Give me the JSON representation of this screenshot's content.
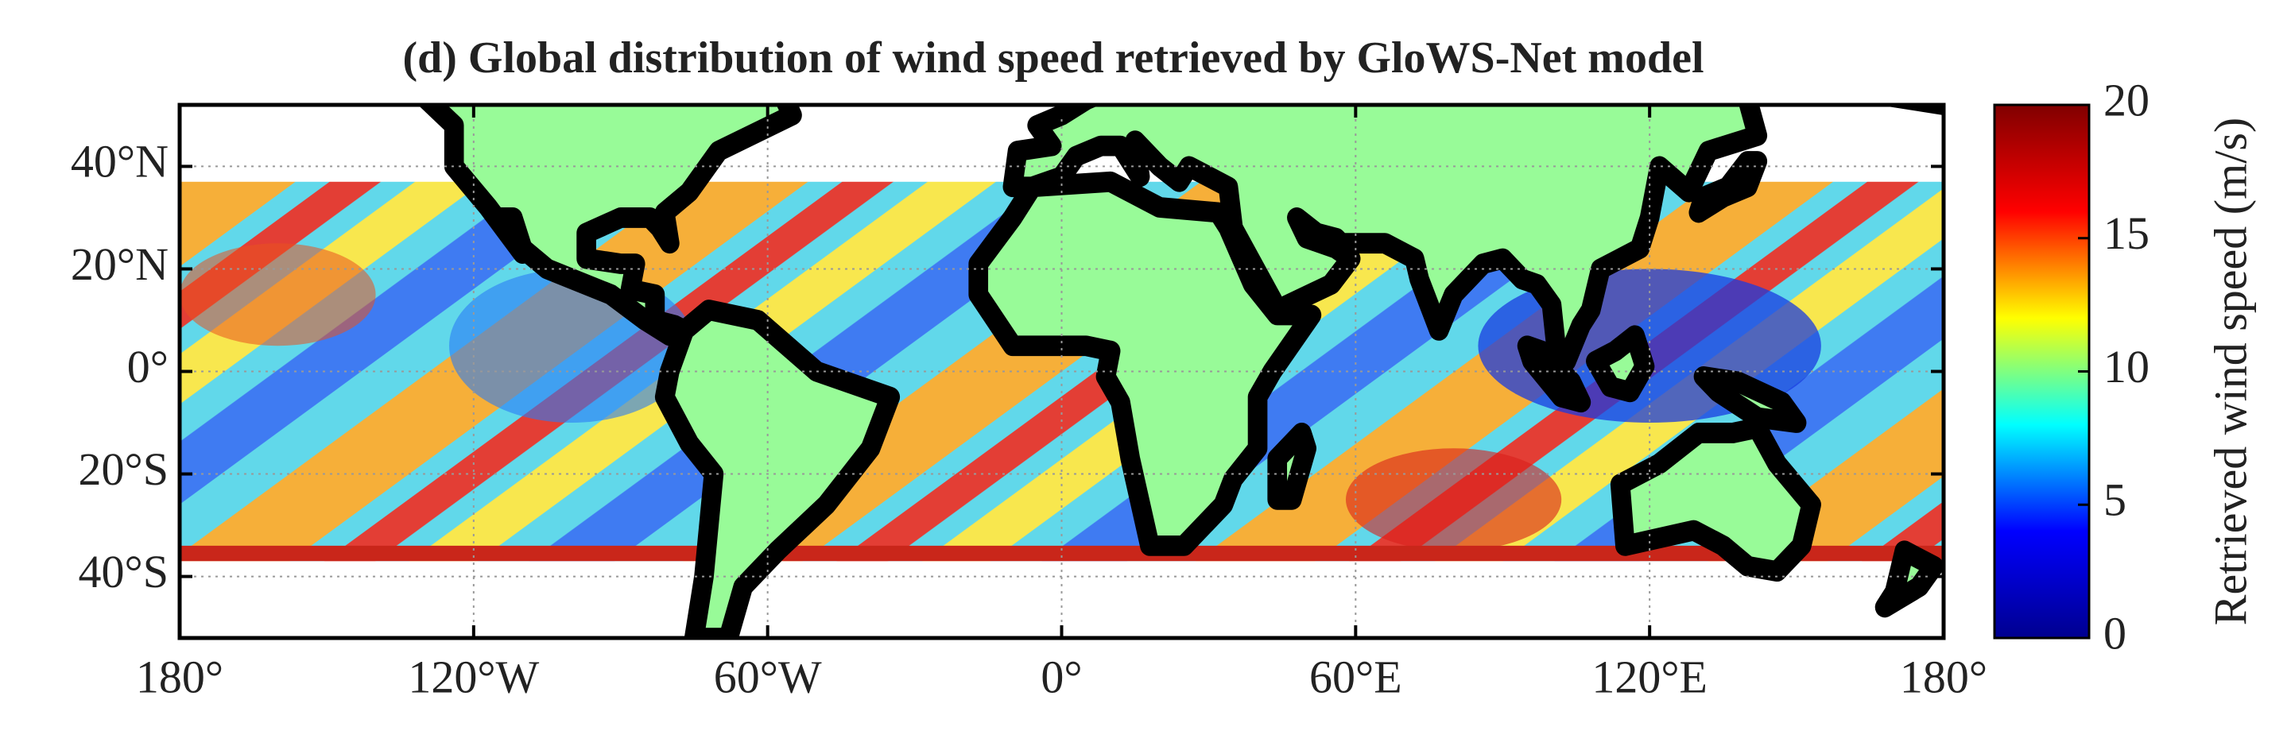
{
  "chart_data": {
    "type": "map",
    "title": "(d) Global distribution of wind speed retrieved by GloWS-Net model",
    "xlim": [
      -180,
      180
    ],
    "ylim": [
      -52,
      52
    ],
    "xticks": [
      {
        "value": -180,
        "label": "180°"
      },
      {
        "value": -120,
        "label": "120°W"
      },
      {
        "value": -60,
        "label": "60°W"
      },
      {
        "value": 0,
        "label": "0°"
      },
      {
        "value": 60,
        "label": "60°E"
      },
      {
        "value": 120,
        "label": "120°E"
      },
      {
        "value": 180,
        "label": "180°"
      }
    ],
    "yticks": [
      {
        "value": -40,
        "label": "40°S"
      },
      {
        "value": -20,
        "label": "20°S"
      },
      {
        "value": 0,
        "label": "0°"
      },
      {
        "value": 20,
        "label": "20°N"
      },
      {
        "value": 40,
        "label": "40°N"
      }
    ],
    "grid": true,
    "land_color": "#98fb98",
    "colorbar": {
      "label": "Retrieved wind speed (m/s)",
      "lim": [
        0,
        20
      ],
      "ticks": [
        0,
        5,
        10,
        15,
        20
      ],
      "colors": [
        "#00008f",
        "#0000ff",
        "#00ffff",
        "#ffff00",
        "#ff0000",
        "#800000"
      ]
    }
  }
}
